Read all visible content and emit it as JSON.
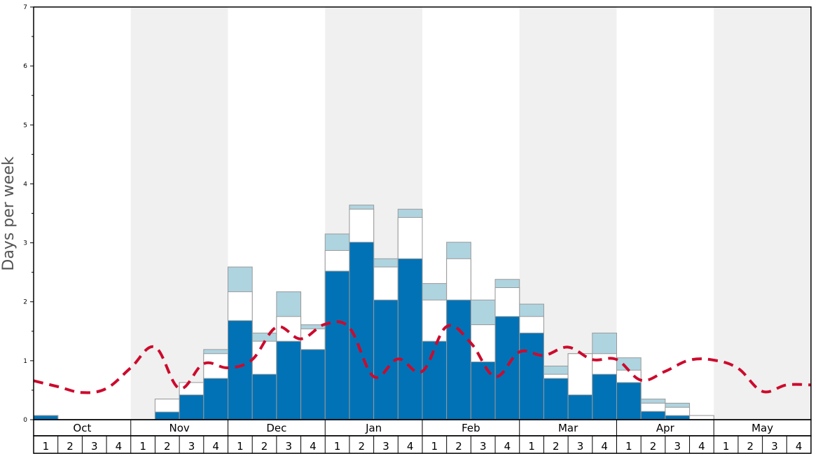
{
  "chart_data": {
    "type": "bar",
    "ylabel": "Days per week",
    "ylim": [
      0,
      7
    ],
    "yticks": [
      0,
      1,
      2,
      3,
      4,
      5,
      6,
      7
    ],
    "months": [
      "Oct",
      "Nov",
      "Dec",
      "Jan",
      "Feb",
      "Mar",
      "Apr",
      "May"
    ],
    "week_labels": [
      "1",
      "2",
      "3",
      "4"
    ],
    "colors": {
      "primary": "#0072b5",
      "secondary": "#ffffff",
      "tertiary": "#aed4e0",
      "line": "#cc0a2d",
      "band": "#f0f0f0",
      "bar_edge": "#999999"
    },
    "series": [
      {
        "values": [
          0.07,
          0,
          0,
          0,
          0,
          0.13,
          0.42,
          0.7,
          1.68,
          0.77,
          1.33,
          1.19,
          2.52,
          3.01,
          2.03,
          2.73,
          1.33,
          2.03,
          0.98,
          1.75,
          1.47,
          0.7,
          0.42,
          0.77,
          0.63,
          0.14,
          0.07,
          0,
          0,
          0,
          0,
          0
        ]
      },
      {
        "values": [
          0.07,
          0,
          0,
          0,
          0,
          0.35,
          0.63,
          1.12,
          2.17,
          1.33,
          1.75,
          1.54,
          2.87,
          3.57,
          2.59,
          3.43,
          2.03,
          2.73,
          1.61,
          2.24,
          1.75,
          0.77,
          1.12,
          1.12,
          0.84,
          0.28,
          0.21,
          0.07,
          0,
          0,
          0,
          0
        ]
      },
      {
        "values": [
          0.07,
          0,
          0,
          0,
          0,
          0.35,
          0.63,
          1.19,
          2.59,
          1.47,
          2.17,
          1.61,
          3.15,
          3.64,
          2.73,
          3.57,
          2.31,
          3.01,
          2.03,
          2.38,
          1.96,
          0.91,
          1.12,
          1.47,
          1.05,
          0.35,
          0.28,
          0.07,
          0,
          0,
          0,
          0
        ]
      },
      {
        "values": [
          0.66,
          0.56,
          0.46,
          0.53,
          0.88,
          1.23,
          0.53,
          0.95,
          0.88,
          1.02,
          1.57,
          1.37,
          1.62,
          1.56,
          0.73,
          1.03,
          0.82,
          1.58,
          1.3,
          0.73,
          1.15,
          1.09,
          1.23,
          1.02,
          1.02,
          0.67,
          0.82,
          1.01,
          1.01,
          0.87,
          0.48,
          0.59,
          0.59
        ]
      }
    ]
  }
}
